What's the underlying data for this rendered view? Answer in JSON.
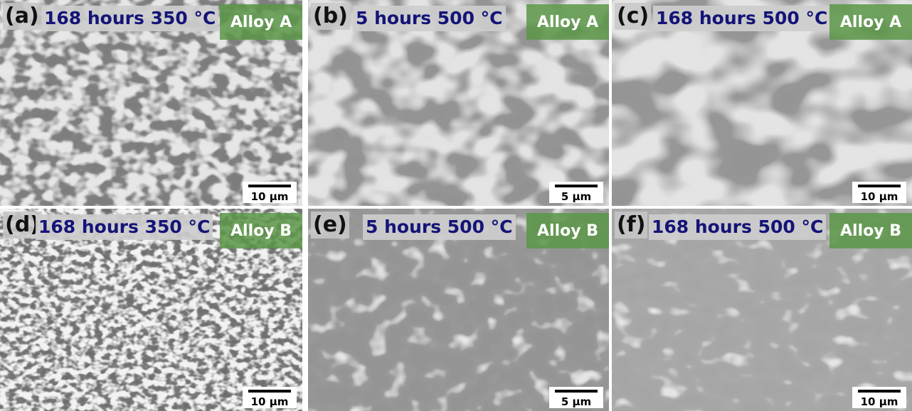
{
  "panels": [
    {
      "label": "(a)",
      "condition": "168 hours 350 °C",
      "alloy": "Alloy A",
      "scale_bar": "10 µm"
    },
    {
      "label": "(b)",
      "condition": "5 hours 500 °C",
      "alloy": "Alloy A",
      "scale_bar": "5 µm"
    },
    {
      "label": "(c)",
      "condition": "168 hours 500 °C",
      "alloy": "Alloy A",
      "scale_bar": "10 µm"
    },
    {
      "label": "(d)",
      "condition": "168 hours 350 °C",
      "alloy": "Alloy B",
      "scale_bar": "10 µm"
    },
    {
      "label": "(e)",
      "condition": "5 hours 500 °C",
      "alloy": "Alloy B",
      "scale_bar": "5 µm"
    },
    {
      "label": "(f)",
      "condition": "168 hours 500 °C",
      "alloy": "Alloy B",
      "scale_bar": "10 µm"
    }
  ]
}
